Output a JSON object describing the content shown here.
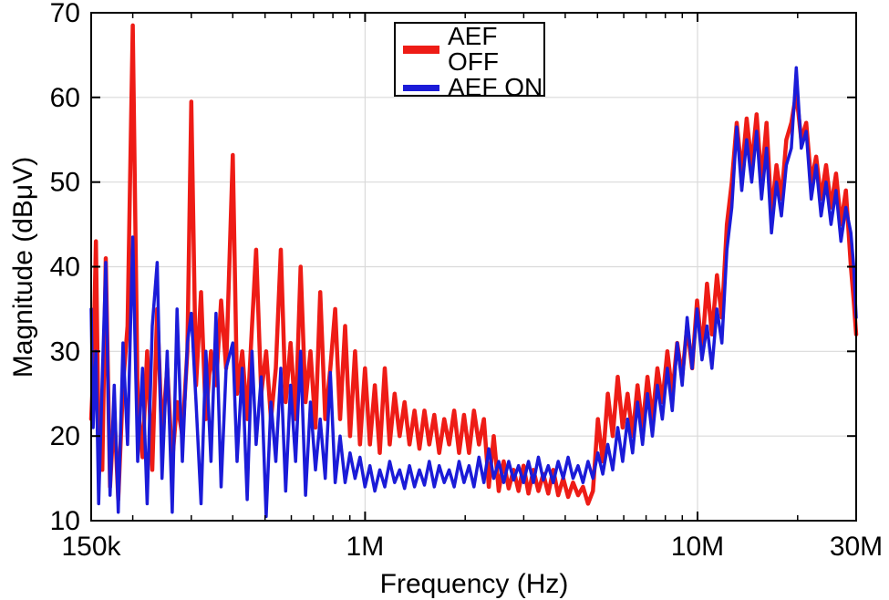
{
  "chart_data": {
    "type": "line",
    "title": "",
    "xlabel": "Frequency (Hz)",
    "ylabel": "Magnitude (dBμV)",
    "x_scale": "log",
    "xlim": [
      150000,
      30000000
    ],
    "ylim": [
      10,
      70
    ],
    "grid": true,
    "legend_position": "top-center",
    "xticks": [
      {
        "value": 150000,
        "label": "150k"
      },
      {
        "value": 1000000,
        "label": "1M"
      },
      {
        "value": 10000000,
        "label": "10M"
      },
      {
        "value": 30000000,
        "label": "30M"
      }
    ],
    "xminor": [
      200000,
      300000,
      400000,
      500000,
      600000,
      700000,
      800000,
      900000,
      2000000,
      3000000,
      4000000,
      5000000,
      6000000,
      7000000,
      8000000,
      9000000,
      20000000
    ],
    "yticks": [
      10,
      20,
      30,
      40,
      50,
      60,
      70
    ],
    "grid_x": [
      1000000,
      10000000
    ],
    "grid_y": [
      20,
      30,
      40,
      50,
      60
    ],
    "x": [
      150000,
      152000,
      155000,
      158000,
      162000,
      166000,
      171000,
      176000,
      181000,
      187000,
      193000,
      200000,
      207000,
      214000,
      221000,
      229000,
      237000,
      245000,
      254000,
      263000,
      272000,
      282000,
      292000,
      300000,
      310000,
      321000,
      332000,
      344000,
      356000,
      369000,
      382000,
      400000,
      412000,
      427000,
      442000,
      457000,
      470000,
      487000,
      504000,
      521000,
      539000,
      558000,
      577000,
      597000,
      618000,
      640000,
      662000,
      685000,
      709000,
      733000,
      759000,
      786000,
      813000,
      841000,
      871000,
      901000,
      933000,
      965000,
      999000,
      1034000,
      1070000,
      1107000,
      1146000,
      1186000,
      1227000,
      1270000,
      1314000,
      1360000,
      1408000,
      1457000,
      1508000,
      1560000,
      1615000,
      1671000,
      1730000,
      1790000,
      1853000,
      1917000,
      1984000,
      2054000,
      2125000,
      2200000,
      2277000,
      2356000,
      2438000,
      2524000,
      2612000,
      2703000,
      2797000,
      2895000,
      2996000,
      3101000,
      3209000,
      3321000,
      3437000,
      3557000,
      3681000,
      3810000,
      3943000,
      4081000,
      4223000,
      4371000,
      4524000,
      4682000,
      4845000,
      5014000,
      5189000,
      5371000,
      5558000,
      5752000,
      5953000,
      6161000,
      6377000,
      6600000,
      6830000,
      7069000,
      7316000,
      7572000,
      7836000,
      8110000,
      8394000,
      8687000,
      8991000,
      9305000,
      9630000,
      9967000,
      10315000,
      10676000,
      11049000,
      11435000,
      11835000,
      12249000,
      12677000,
      13120000,
      13579000,
      14054000,
      14545000,
      15053000,
      15580000,
      16124000,
      16688000,
      17271000,
      17875000,
      18500000,
      19147000,
      19816000,
      20509000,
      21226000,
      21968000,
      22736000,
      23531000,
      24353000,
      25205000,
      26086000,
      26998000,
      27942000,
      28919000,
      29500000,
      30000000
    ],
    "series": [
      {
        "name": "AEF OFF",
        "color": "#ee1c16",
        "linewidth": 4.5,
        "values": [
          22,
          27,
          43,
          19,
          16,
          41,
          14,
          23,
          12.5,
          26,
          33,
          68.5,
          24,
          17.5,
          30,
          16,
          35,
          20,
          28,
          17,
          24,
          20,
          30,
          59.5,
          26,
          37,
          22,
          30,
          26,
          36,
          28,
          53.2,
          25,
          30,
          22,
          33,
          42,
          25,
          30,
          22,
          28,
          42,
          24,
          31,
          22,
          40,
          24,
          30,
          21,
          37,
          22,
          28,
          35,
          22,
          33,
          20,
          30,
          19,
          28,
          19,
          26,
          18,
          28,
          19,
          25,
          20,
          24,
          19,
          23,
          18.5,
          23,
          19,
          22.5,
          18,
          22,
          19,
          23,
          18,
          22.5,
          18,
          23,
          19,
          22,
          14,
          20,
          13.5,
          17,
          13.8,
          16,
          13.5,
          16.5,
          13.2,
          16,
          13.5,
          15.5,
          13.2,
          16,
          13,
          15,
          12.8,
          14.5,
          13,
          14,
          12,
          13.5,
          22,
          17,
          25,
          20,
          27,
          21,
          25,
          20,
          26,
          21,
          27,
          22,
          28,
          24,
          30,
          25,
          31,
          27,
          33,
          28,
          36,
          30,
          38,
          32,
          39,
          34,
          45,
          50,
          57,
          51,
          57.5,
          52,
          58,
          50,
          57,
          46,
          52,
          48,
          55,
          57,
          60.5,
          55,
          57,
          50,
          53,
          48,
          52,
          47,
          51,
          45,
          49,
          40,
          36,
          32
        ]
      },
      {
        "name": "AEF ON",
        "color": "#1b1bd8",
        "linewidth": 3.5,
        "values": [
          35,
          21,
          30,
          12,
          27,
          40.5,
          13,
          26,
          11,
          31,
          19,
          43.5,
          17,
          28,
          12,
          33,
          40.5,
          15,
          30,
          11,
          35,
          17,
          31,
          34.5,
          24,
          12,
          30,
          17,
          34.5,
          14,
          28,
          31,
          17,
          28,
          12.5,
          30,
          19,
          27,
          10.5,
          24,
          17,
          28,
          13.5,
          26,
          17,
          30,
          13,
          24,
          16,
          22,
          15,
          27.5,
          14.5,
          20,
          14.5,
          18,
          15,
          17.5,
          14,
          16.5,
          13.5,
          16,
          14,
          17,
          14.5,
          16,
          13.8,
          16.5,
          14,
          16,
          14.2,
          17,
          14,
          16.5,
          14.5,
          16,
          14,
          17,
          14.5,
          16.5,
          14,
          17.5,
          14.5,
          18.5,
          15,
          17,
          14.5,
          17,
          14.8,
          16.5,
          14.5,
          17,
          14.5,
          17.5,
          14.8,
          16.5,
          14.5,
          17,
          15,
          17.5,
          15,
          16.5,
          14.5,
          17,
          15,
          18,
          15.5,
          19,
          16,
          21,
          17,
          22,
          18,
          24,
          19,
          25,
          20,
          26,
          22,
          28,
          23,
          31,
          26,
          34,
          28,
          35,
          29,
          33,
          28,
          35,
          31,
          42,
          47,
          56.5,
          49,
          55,
          50,
          56,
          48,
          54,
          44,
          50,
          46,
          52,
          54,
          63.5,
          54,
          56,
          48,
          52,
          46,
          50,
          45,
          49,
          43,
          47,
          44,
          40,
          34
        ]
      }
    ]
  }
}
